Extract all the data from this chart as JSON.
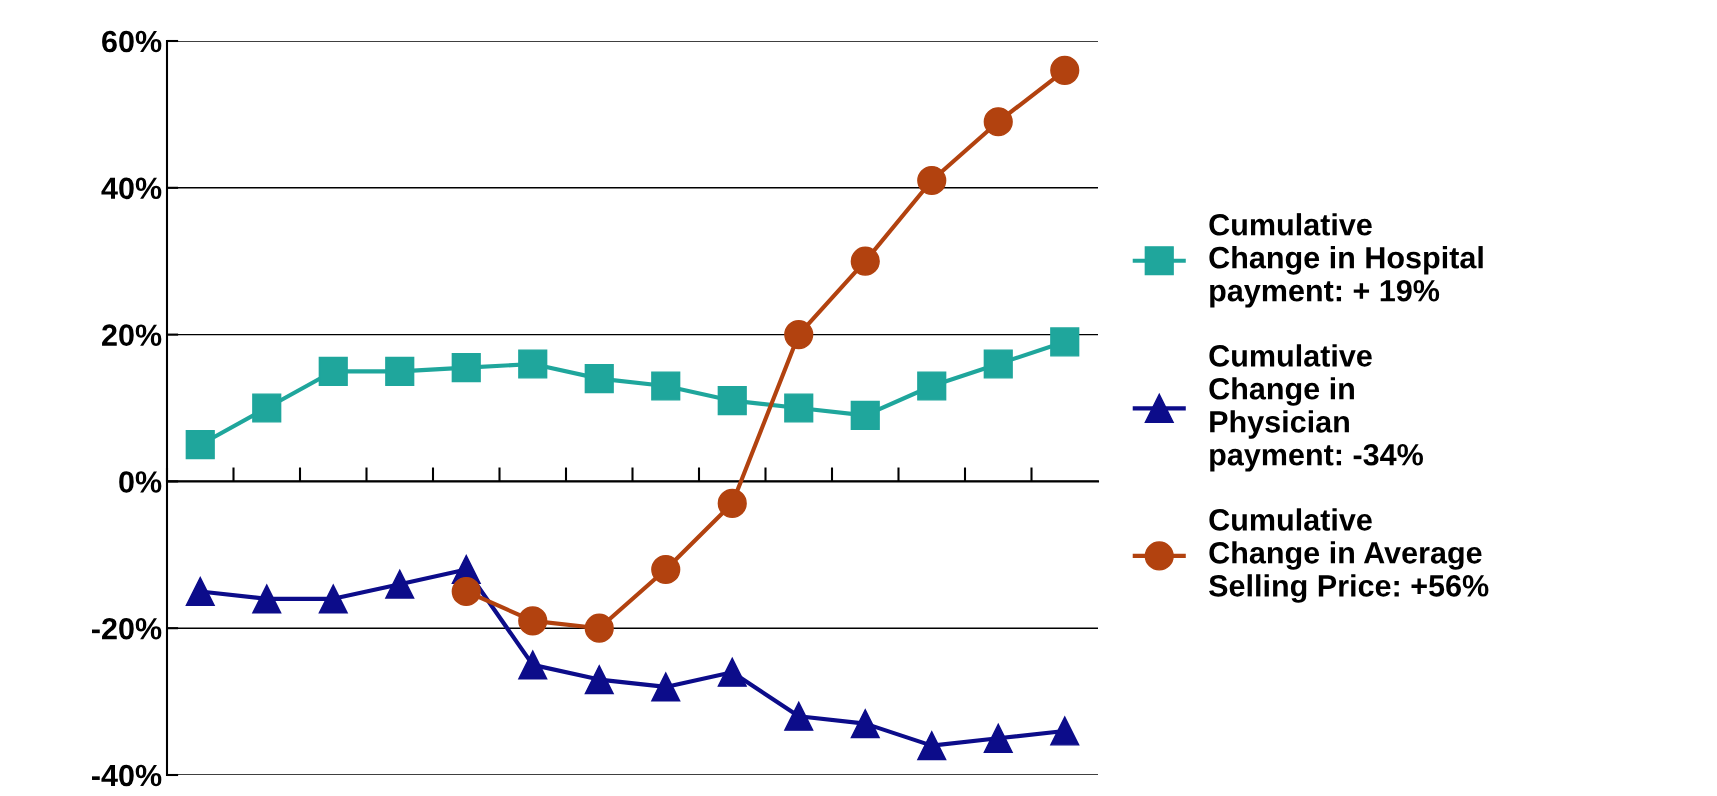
{
  "chart_data": {
    "type": "line",
    "categories": [
      null,
      null,
      null,
      null,
      null,
      null,
      null,
      null,
      null,
      null,
      null,
      null,
      null,
      null
    ],
    "series": [
      {
        "name": "Cumulative\nChange in Hospital\npayment: + 19%",
        "color": "#1fa69c",
        "marker": "square",
        "values": [
          5,
          10,
          15,
          15,
          15.5,
          16,
          14,
          13,
          11,
          10,
          9,
          13,
          16,
          19
        ]
      },
      {
        "name": "Cumulative\nChange in\nPhysician\npayment: -34%",
        "color": "#0c0c8a",
        "marker": "triangle",
        "values": [
          -15,
          -16,
          -16,
          -14,
          -12,
          -25,
          -27,
          -28,
          -26,
          -32,
          -33,
          -36,
          -35,
          -34
        ]
      },
      {
        "name": "Cumulative\nChange in Average\nSelling Price: +56%",
        "color": "#b2420f",
        "marker": "circle",
        "values": [
          null,
          null,
          null,
          null,
          -15,
          -19,
          -20,
          -12,
          -3,
          20,
          30,
          41,
          49,
          56
        ]
      }
    ],
    "ylim": [
      -40,
      60
    ],
    "yticks": [
      {
        "value": -40,
        "label": "-40%"
      },
      {
        "value": -20,
        "label": "-20%"
      },
      {
        "value": 0,
        "label": "0%"
      },
      {
        "value": 20,
        "label": "20%"
      },
      {
        "value": 40,
        "label": "40%"
      },
      {
        "value": 60,
        "label": "60%"
      }
    ],
    "grid": "y",
    "legend": "right",
    "tick_labels": "y",
    "line_style": "solid"
  }
}
